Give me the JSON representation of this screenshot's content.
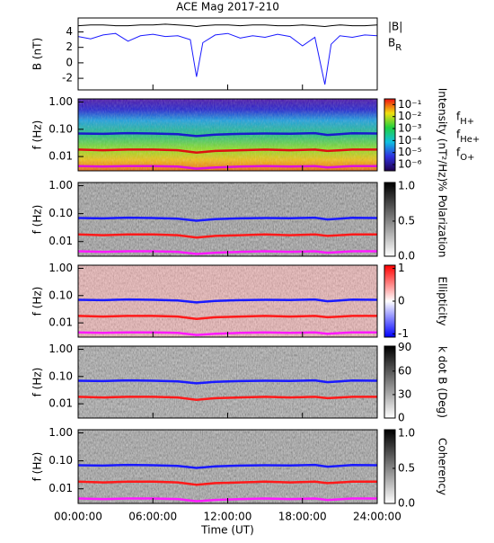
{
  "chart_data": [
    {
      "type": "line",
      "title": "ACE Mag 2017-210",
      "ylabel": "B (nT)",
      "xlim": [
        0,
        24
      ],
      "xticks": [
        0,
        6,
        12,
        18,
        24
      ],
      "ylim": [
        -3.5,
        5.8
      ],
      "yticks": [
        -2,
        0,
        2,
        4
      ],
      "x": [
        0,
        1,
        2,
        3,
        4,
        5,
        6,
        7,
        8,
        9,
        9.5,
        10,
        11,
        12,
        13,
        14,
        15,
        16,
        17,
        18,
        19,
        19.8,
        20.3,
        21,
        22,
        23,
        24
      ],
      "series": [
        {
          "name": "|B|",
          "color": "#000000",
          "values": [
            4.8,
            4.9,
            4.9,
            4.8,
            4.8,
            4.9,
            4.9,
            5.0,
            4.9,
            4.8,
            4.7,
            4.8,
            4.9,
            4.9,
            4.8,
            4.9,
            4.9,
            4.8,
            4.8,
            4.9,
            4.8,
            4.7,
            4.8,
            4.9,
            4.8,
            4.8,
            4.9
          ]
        },
        {
          "name": "BR",
          "color": "#1a1aff",
          "values": [
            3.4,
            3.1,
            3.6,
            3.8,
            2.8,
            3.5,
            3.7,
            3.4,
            3.5,
            3.0,
            -1.8,
            2.6,
            3.6,
            3.8,
            3.2,
            3.5,
            3.3,
            3.7,
            3.4,
            2.2,
            3.3,
            -2.8,
            2.4,
            3.5,
            3.3,
            3.6,
            3.5
          ]
        }
      ]
    },
    {
      "type": "spectrogram",
      "ylabel": "f (Hz)",
      "xlim": [
        0,
        24
      ],
      "xticks": [
        0,
        6,
        12,
        18,
        24
      ],
      "ylim": [
        0.003,
        1.3
      ],
      "log": true,
      "yticks": [
        {
          "value": 1,
          "label": "1.00"
        },
        {
          "value": 0.1,
          "label": "0.10"
        },
        {
          "value": 0.01,
          "label": "0.01"
        }
      ],
      "colorbar": {
        "label": "Intensity (nT²/Hz)",
        "log": true,
        "lim": [
          3e-07,
          0.3
        ],
        "ticks": [
          {
            "value": 0.1,
            "label": "10⁻¹"
          },
          {
            "value": 0.01,
            "label": "10⁻²"
          },
          {
            "value": 0.001,
            "label": "10⁻³"
          },
          {
            "value": 0.0001,
            "label": "10⁻⁴"
          },
          {
            "value": 1e-05,
            "label": "10⁻⁵"
          },
          {
            "value": 1e-06,
            "label": "10⁻⁶"
          }
        ]
      },
      "x": [
        0,
        2,
        4,
        6,
        8,
        9.5,
        11,
        13,
        15,
        17,
        19,
        20,
        22,
        24
      ],
      "series": [
        {
          "name": "fH+",
          "color": "#1a1acc",
          "values": [
            0.07,
            0.068,
            0.072,
            0.07,
            0.066,
            0.056,
            0.064,
            0.068,
            0.07,
            0.069,
            0.072,
            0.062,
            0.071,
            0.07
          ]
        },
        {
          "name": "fHe+",
          "color": "#dd1111",
          "values": [
            0.018,
            0.017,
            0.018,
            0.018,
            0.017,
            0.014,
            0.016,
            0.017,
            0.018,
            0.017,
            0.018,
            0.016,
            0.018,
            0.018
          ]
        },
        {
          "name": "fO+",
          "color": "#dd11dd",
          "values": [
            0.0045,
            0.0043,
            0.0045,
            0.0045,
            0.0043,
            0.0036,
            0.004,
            0.0043,
            0.0045,
            0.0043,
            0.0045,
            0.004,
            0.0045,
            0.0045
          ]
        }
      ]
    },
    {
      "type": "spectrogram",
      "ylabel": "f (Hz)",
      "xlim": [
        0,
        24
      ],
      "xticks": [
        0,
        6,
        12,
        18,
        24
      ],
      "ylim": [
        0.003,
        1.3
      ],
      "log": true,
      "yticks": [
        {
          "value": 1,
          "label": "1.00"
        },
        {
          "value": 0.1,
          "label": "0.10"
        },
        {
          "value": 0.01,
          "label": "0.01"
        }
      ],
      "colorbar": {
        "label": "% Polarization",
        "lim": [
          0,
          1.05
        ],
        "ticks": [
          {
            "value": 0,
            "label": "0.0"
          },
          {
            "value": 0.5,
            "label": "0.5"
          },
          {
            "value": 1,
            "label": "1.0"
          }
        ]
      },
      "x": [
        0,
        2,
        4,
        6,
        8,
        9.5,
        11,
        13,
        15,
        17,
        19,
        20,
        22,
        24
      ],
      "series": [
        {
          "color": "#1a1aff",
          "values": [
            0.07,
            0.068,
            0.072,
            0.07,
            0.066,
            0.056,
            0.064,
            0.068,
            0.07,
            0.069,
            0.072,
            0.062,
            0.071,
            0.07
          ]
        },
        {
          "color": "#ff1a1a",
          "values": [
            0.018,
            0.017,
            0.018,
            0.018,
            0.017,
            0.014,
            0.016,
            0.017,
            0.018,
            0.017,
            0.018,
            0.016,
            0.018,
            0.018
          ]
        },
        {
          "color": "#ff1aff",
          "values": [
            0.0045,
            0.0043,
            0.0045,
            0.0045,
            0.0043,
            0.0036,
            0.004,
            0.0043,
            0.0045,
            0.0043,
            0.0045,
            0.004,
            0.0045,
            0.0045
          ]
        }
      ]
    },
    {
      "type": "spectrogram",
      "ylabel": "f (Hz)",
      "xlim": [
        0,
        24
      ],
      "xticks": [
        0,
        6,
        12,
        18,
        24
      ],
      "ylim": [
        0.003,
        1.3
      ],
      "log": true,
      "yticks": [
        {
          "value": 1,
          "label": "1.00"
        },
        {
          "value": 0.1,
          "label": "0.10"
        },
        {
          "value": 0.01,
          "label": "0.01"
        }
      ],
      "colorbar": {
        "label": "Ellipticity",
        "lim": [
          -1.1,
          1.1
        ],
        "ticks": [
          1,
          0,
          -1
        ]
      },
      "x": [
        0,
        2,
        4,
        6,
        8,
        9.5,
        11,
        13,
        15,
        17,
        19,
        20,
        22,
        24
      ],
      "series": [
        {
          "color": "#1a1aff",
          "values": [
            0.07,
            0.068,
            0.072,
            0.07,
            0.066,
            0.056,
            0.064,
            0.068,
            0.07,
            0.069,
            0.072,
            0.062,
            0.071,
            0.07
          ]
        },
        {
          "color": "#ff1a1a",
          "values": [
            0.018,
            0.017,
            0.018,
            0.018,
            0.017,
            0.014,
            0.016,
            0.017,
            0.018,
            0.017,
            0.018,
            0.016,
            0.018,
            0.018
          ]
        },
        {
          "color": "#ff1aff",
          "values": [
            0.0045,
            0.0043,
            0.0045,
            0.0045,
            0.0043,
            0.0036,
            0.004,
            0.0043,
            0.0045,
            0.0043,
            0.0045,
            0.004,
            0.0045,
            0.0045
          ]
        }
      ]
    },
    {
      "type": "spectrogram",
      "ylabel": "f (Hz)",
      "xlim": [
        0,
        24
      ],
      "xticks": [
        0,
        6,
        12,
        18,
        24
      ],
      "ylim": [
        0.003,
        1.3
      ],
      "log": true,
      "yticks": [
        {
          "value": 1,
          "label": "1.00"
        },
        {
          "value": 0.1,
          "label": "0.10"
        },
        {
          "value": 0.01,
          "label": "0.01"
        }
      ],
      "colorbar": {
        "label": "k dot B (Deg)",
        "lim": [
          0,
          92
        ],
        "ticks": [
          90,
          60,
          30,
          0
        ]
      },
      "x": [
        0,
        2,
        4,
        6,
        8,
        9.5,
        11,
        13,
        15,
        17,
        19,
        20,
        22,
        24
      ],
      "series": [
        {
          "color": "#1a1aff",
          "values": [
            0.07,
            0.068,
            0.072,
            0.07,
            0.066,
            0.056,
            0.064,
            0.068,
            0.07,
            0.069,
            0.072,
            0.062,
            0.071,
            0.07
          ]
        },
        {
          "color": "#ff1a1a",
          "values": [
            0.018,
            0.017,
            0.018,
            0.018,
            0.017,
            0.014,
            0.016,
            0.017,
            0.018,
            0.017,
            0.018,
            0.016,
            0.018,
            0.018
          ]
        }
      ]
    },
    {
      "type": "spectrogram",
      "ylabel": "f (Hz)",
      "xlabel": "Time (UT)",
      "xlim": [
        0,
        24
      ],
      "log": true,
      "xticks": [
        {
          "value": 0,
          "label": "00:00:00"
        },
        {
          "value": 6,
          "label": "06:00:00"
        },
        {
          "value": 12,
          "label": "12:00:00"
        },
        {
          "value": 18,
          "label": "18:00:00"
        },
        {
          "value": 24,
          "label": "24:00:00"
        }
      ],
      "ylim": [
        0.003,
        1.3
      ],
      "yticks": [
        {
          "value": 1,
          "label": "1.00"
        },
        {
          "value": 0.1,
          "label": "0.10"
        },
        {
          "value": 0.01,
          "label": "0.01"
        }
      ],
      "colorbar": {
        "label": "Coherency",
        "lim": [
          0,
          1.05
        ],
        "ticks": [
          {
            "value": 0,
            "label": "0.0"
          },
          {
            "value": 0.5,
            "label": "0.5"
          },
          {
            "value": 1,
            "label": "1.0"
          }
        ]
      },
      "x": [
        0,
        2,
        4,
        6,
        8,
        9.5,
        11,
        13,
        15,
        17,
        19,
        20,
        22,
        24
      ],
      "series": [
        {
          "color": "#1a1aff",
          "values": [
            0.07,
            0.068,
            0.072,
            0.07,
            0.066,
            0.056,
            0.064,
            0.068,
            0.07,
            0.069,
            0.072,
            0.062,
            0.071,
            0.07
          ]
        },
        {
          "color": "#ff1a1a",
          "values": [
            0.018,
            0.017,
            0.018,
            0.018,
            0.017,
            0.014,
            0.016,
            0.017,
            0.018,
            0.017,
            0.018,
            0.016,
            0.018,
            0.018
          ]
        },
        {
          "color": "#ff1aff",
          "values": [
            0.0045,
            0.0043,
            0.0045,
            0.0045,
            0.0043,
            0.0036,
            0.004,
            0.0043,
            0.0045,
            0.0043,
            0.0045,
            0.004,
            0.0045,
            0.0045
          ]
        }
      ]
    }
  ]
}
